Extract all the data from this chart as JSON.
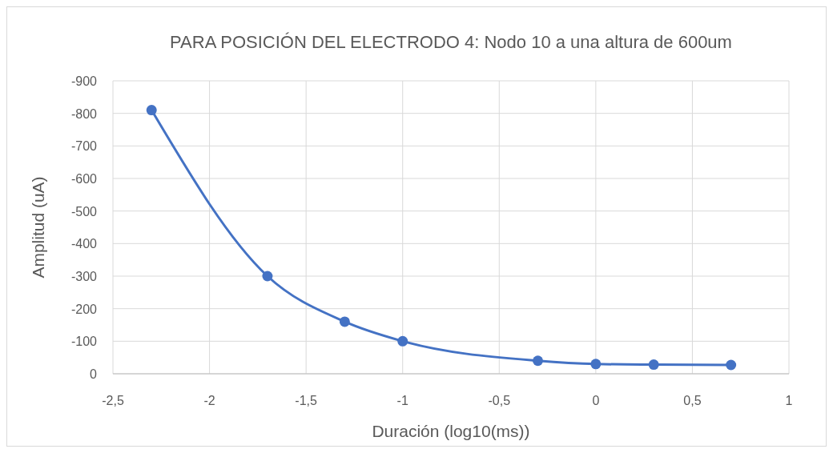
{
  "chart_data": {
    "type": "line",
    "title": "PARA POSICIÓN DEL ELECTRODO 4: Nodo 10 a una altura de 600um",
    "xlabel": "Duración (log10(ms))",
    "ylabel": "Amplitud (uA)",
    "x": [
      -2.3,
      -1.7,
      -1.3,
      -1,
      -0.3,
      0,
      0.3,
      0.7
    ],
    "series": [
      {
        "color": "#4472c4",
        "values": [
          -810,
          -300,
          -160,
          -100,
          -40,
          -30,
          -28,
          -27
        ]
      }
    ],
    "xlim": [
      -2.5,
      1
    ],
    "xticks": [
      {
        "value": -2.5,
        "label": "-2,5"
      },
      -2,
      {
        "value": -1.5,
        "label": "-1,5"
      },
      -1,
      {
        "value": -0.5,
        "label": "-0,5"
      },
      0,
      {
        "value": 0.5,
        "label": "0,5"
      },
      1
    ],
    "ylim": [
      0,
      -900
    ],
    "yticks": [
      0,
      -100,
      -200,
      -300,
      -400,
      -500,
      -600,
      -700,
      -800,
      -900
    ],
    "grid": true,
    "marker": "circle",
    "line_style": "solid"
  }
}
